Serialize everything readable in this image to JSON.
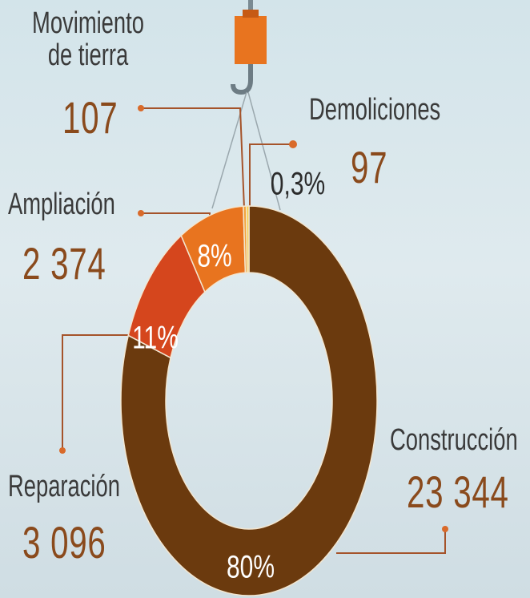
{
  "chart_data": {
    "type": "donut",
    "categories": [
      "Construcción",
      "Reparación",
      "Ampliación",
      "Movimiento de tierra",
      "Demoliciones"
    ],
    "values": [
      23344,
      3096,
      2374,
      107,
      97
    ],
    "value_labels": [
      "23 344",
      "3 096",
      "2 374",
      "107",
      "97"
    ],
    "percent_labels": [
      "80%",
      "11%",
      "8%",
      null,
      "0,3%"
    ],
    "colors": [
      "#6b3a0e",
      "#d5461d",
      "#e8741f",
      "#f2a33a",
      "#f6cf4a"
    ]
  }
}
